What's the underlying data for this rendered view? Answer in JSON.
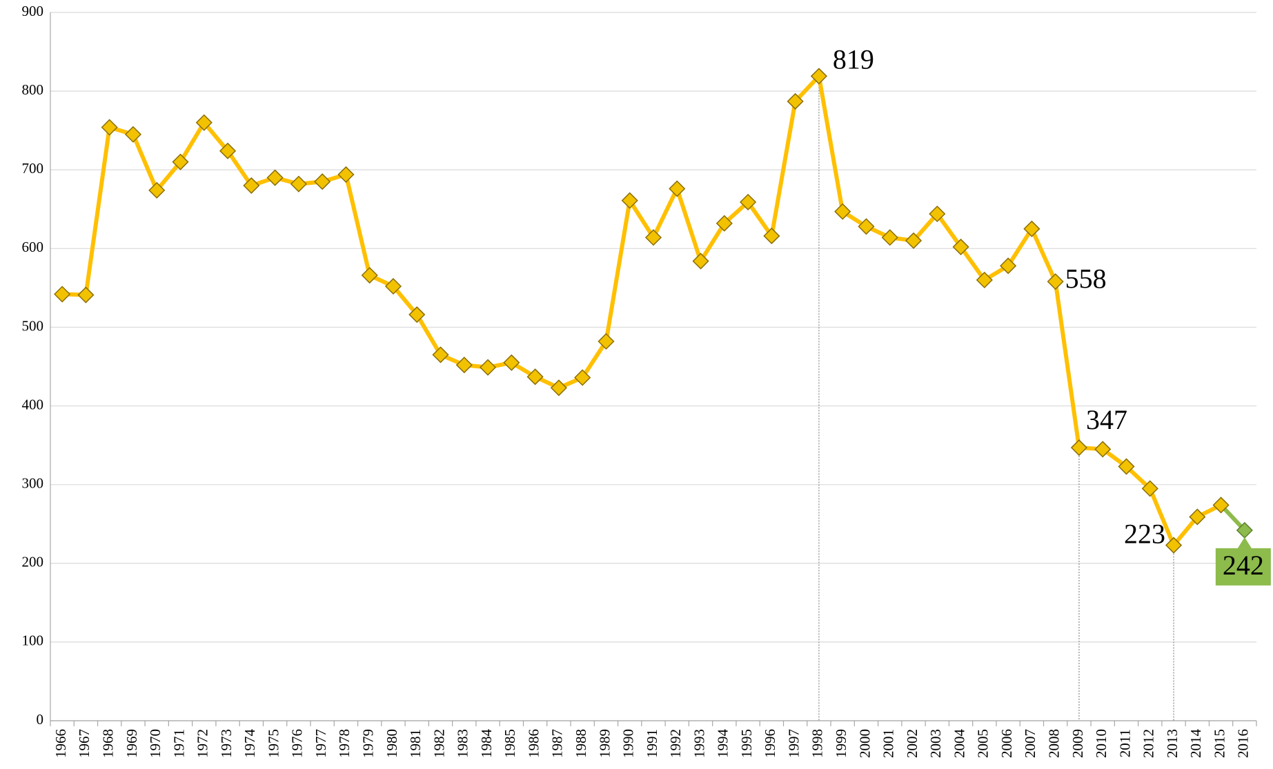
{
  "chart_data": {
    "type": "line",
    "categories": [
      "1966",
      "1967",
      "1968",
      "1969",
      "1970",
      "1971",
      "1972",
      "1973",
      "1974",
      "1975",
      "1976",
      "1977",
      "1978",
      "1979",
      "1980",
      "1981",
      "1982",
      "1983",
      "1984",
      "1985",
      "1986",
      "1987",
      "1988",
      "1989",
      "1990",
      "1991",
      "1992",
      "1993",
      "1994",
      "1995",
      "1996",
      "1997",
      "1998",
      "1999",
      "2000",
      "2001",
      "2002",
      "2003",
      "2004",
      "2005",
      "2006",
      "2007",
      "2008",
      "2009",
      "2010",
      "2011",
      "2012",
      "2013",
      "2014",
      "2015",
      "2016"
    ],
    "values": [
      542,
      541,
      754,
      745,
      674,
      710,
      760,
      724,
      680,
      690,
      682,
      685,
      694,
      566,
      552,
      516,
      465,
      452,
      449,
      455,
      437,
      423,
      436,
      482,
      661,
      614,
      676,
      584,
      632,
      659,
      616,
      787,
      819,
      647,
      628,
      614,
      610,
      644,
      602,
      560,
      578,
      625,
      558,
      347,
      345,
      323,
      295,
      223,
      259,
      274,
      242
    ],
    "color": "#ffc000",
    "marker_color": "#f2c200",
    "last_point_color": "#8dbb4c",
    "highlights": [
      "1998",
      "2008",
      "2009",
      "2013",
      "2016"
    ],
    "drop_lines": [
      "1998",
      "2009",
      "2013"
    ],
    "ylim": [
      0,
      900
    ],
    "yticks": [
      0,
      100,
      200,
      300,
      400,
      500,
      600,
      700,
      800,
      900
    ],
    "grid": true
  }
}
